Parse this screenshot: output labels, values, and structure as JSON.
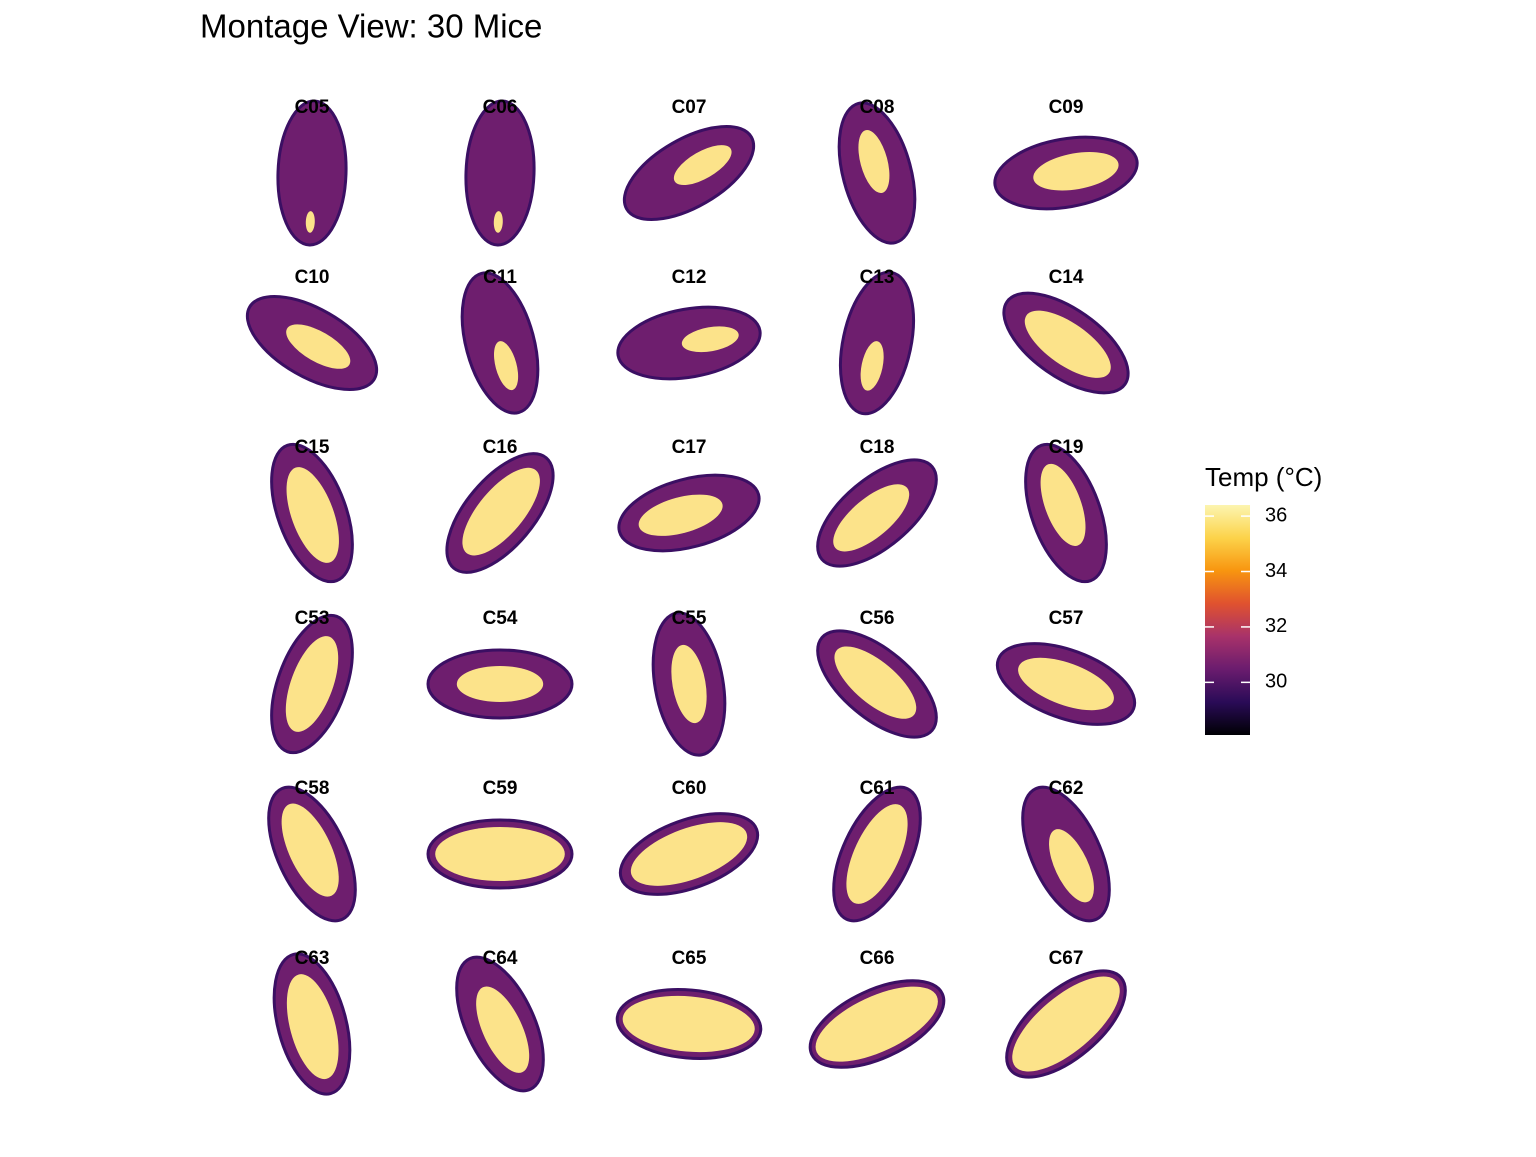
{
  "chart_data": {
    "type": "montage",
    "title": "Montage View: 30 Mice",
    "panels": [
      "C05",
      "C06",
      "C07",
      "C08",
      "C09",
      "C10",
      "C11",
      "C12",
      "C13",
      "C14",
      "C15",
      "C16",
      "C17",
      "C18",
      "C19",
      "C53",
      "C54",
      "C55",
      "C56",
      "C57",
      "C58",
      "C59",
      "C60",
      "C61",
      "C62",
      "C63",
      "C64",
      "C65",
      "C66",
      "C67"
    ],
    "legend": {
      "title": "Temp (°C)",
      "lim": [
        28.1,
        36.4
      ],
      "ticks": [
        30,
        32,
        34,
        36
      ],
      "colors": [
        "#000004",
        "#2a0b57",
        "#6a1c6e",
        "#a8326a",
        "#e0522f",
        "#f8950f",
        "#fcd34a",
        "#fcf5b0"
      ]
    }
  }
}
